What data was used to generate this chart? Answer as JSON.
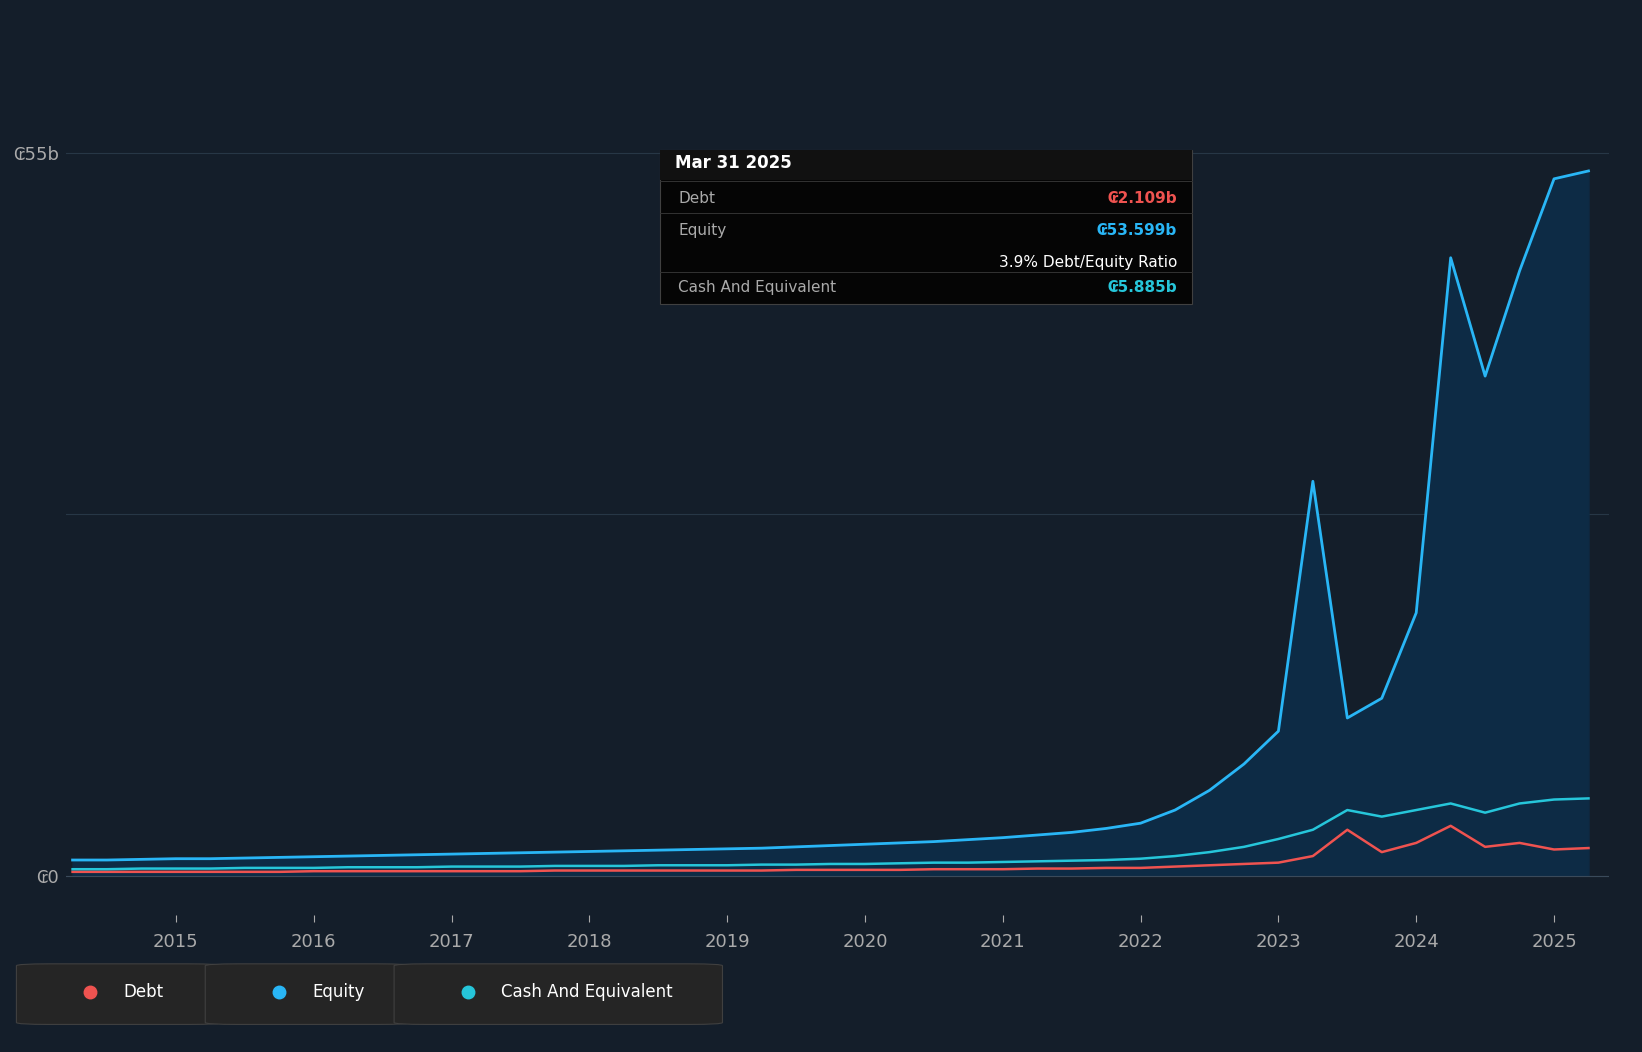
{
  "background_color": "#141E2A",
  "plot_bg_color": "#141E2A",
  "grid_color": "#2A3A4A",
  "equity_color": "#29B6F6",
  "debt_color": "#EF5350",
  "cash_color": "#26C6DA",
  "equity_fill": "#0D2B45",
  "tooltip_bg": "#000000",
  "tooltip_title": "Mar 31 2025",
  "tooltip_debt_label": "Debt",
  "tooltip_debt_value": "₢2.109b",
  "tooltip_equity_label": "Equity",
  "tooltip_equity_value": "₢53.599b",
  "tooltip_ratio": "3.9% Debt/Equity Ratio",
  "tooltip_cash_label": "Cash And Equivalent",
  "tooltip_cash_value": "₢5.885b",
  "legend_labels": [
    "Debt",
    "Equity",
    "Cash And Equivalent"
  ],
  "legend_colors": [
    "#EF5350",
    "#29B6F6",
    "#26C6DA"
  ],
  "ylabel_55b": "₢55b",
  "ylabel_0": "₢0",
  "years": [
    2014.25,
    2014.5,
    2014.75,
    2015.0,
    2015.25,
    2015.5,
    2015.75,
    2016.0,
    2016.25,
    2016.5,
    2016.75,
    2017.0,
    2017.25,
    2017.5,
    2017.75,
    2018.0,
    2018.25,
    2018.5,
    2018.75,
    2019.0,
    2019.25,
    2019.5,
    2019.75,
    2020.0,
    2020.25,
    2020.5,
    2020.75,
    2021.0,
    2021.25,
    2021.5,
    2021.75,
    2022.0,
    2022.25,
    2022.5,
    2022.75,
    2023.0,
    2023.25,
    2023.5,
    2023.75,
    2024.0,
    2024.25,
    2024.5,
    2024.75,
    2025.0,
    2025.25
  ],
  "equity": [
    1.2,
    1.2,
    1.25,
    1.3,
    1.3,
    1.35,
    1.4,
    1.45,
    1.5,
    1.55,
    1.6,
    1.65,
    1.7,
    1.75,
    1.8,
    1.85,
    1.9,
    1.95,
    2.0,
    2.05,
    2.1,
    2.2,
    2.3,
    2.4,
    2.5,
    2.6,
    2.75,
    2.9,
    3.1,
    3.3,
    3.6,
    4.0,
    5.0,
    6.5,
    8.5,
    11.0,
    30.0,
    12.0,
    13.5,
    20.0,
    47.0,
    38.0,
    46.0,
    53.0,
    53.6
  ],
  "debt": [
    0.3,
    0.3,
    0.3,
    0.3,
    0.3,
    0.3,
    0.3,
    0.35,
    0.35,
    0.35,
    0.35,
    0.35,
    0.35,
    0.35,
    0.4,
    0.4,
    0.4,
    0.4,
    0.4,
    0.4,
    0.4,
    0.45,
    0.45,
    0.45,
    0.45,
    0.5,
    0.5,
    0.5,
    0.55,
    0.55,
    0.6,
    0.6,
    0.7,
    0.8,
    0.9,
    1.0,
    1.5,
    3.5,
    1.8,
    2.5,
    3.8,
    2.2,
    2.5,
    2.0,
    2.109
  ],
  "cash": [
    0.5,
    0.5,
    0.55,
    0.55,
    0.55,
    0.6,
    0.6,
    0.6,
    0.65,
    0.65,
    0.65,
    0.7,
    0.7,
    0.7,
    0.75,
    0.75,
    0.75,
    0.8,
    0.8,
    0.8,
    0.85,
    0.85,
    0.9,
    0.9,
    0.95,
    1.0,
    1.0,
    1.05,
    1.1,
    1.15,
    1.2,
    1.3,
    1.5,
    1.8,
    2.2,
    2.8,
    3.5,
    5.0,
    4.5,
    5.0,
    5.5,
    4.8,
    5.5,
    5.8,
    5.885
  ],
  "ylim": [
    -3,
    57
  ],
  "xlim": [
    2014.2,
    2025.4
  ],
  "ytick_positions": [
    0,
    55
  ],
  "xtick_positions": [
    2015,
    2016,
    2017,
    2018,
    2019,
    2020,
    2021,
    2022,
    2023,
    2024,
    2025
  ]
}
